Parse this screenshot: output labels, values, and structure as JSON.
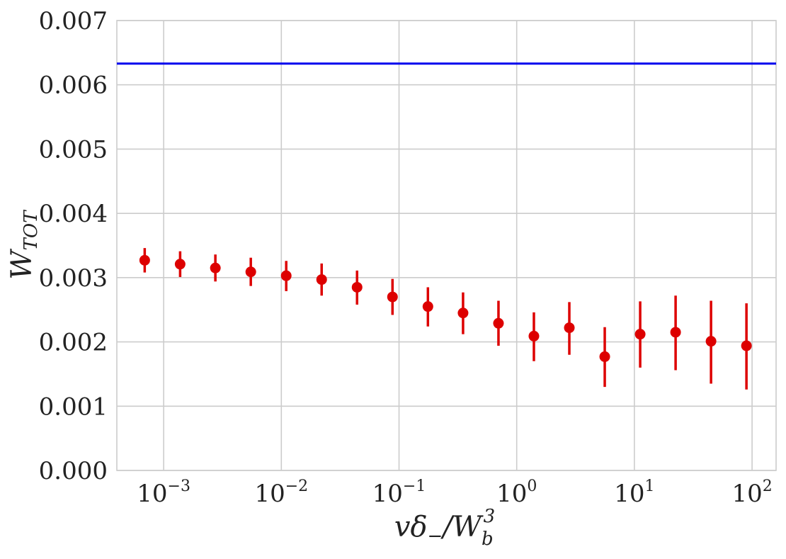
{
  "chart_data": {
    "type": "scatter",
    "title": "",
    "xlabel": {
      "main": "vδ",
      "sub": "−",
      "slash": "/W",
      "sub2": "b",
      "sup2": "3"
    },
    "ylabel": {
      "main": "W",
      "sub": "TOT"
    },
    "xscale": "log",
    "xlim": [
      0.0004,
      160
    ],
    "ylim": [
      0,
      0.007
    ],
    "grid": true,
    "x_ticks": [
      {
        "value": 0.001,
        "base": "10",
        "exp": "−3"
      },
      {
        "value": 0.01,
        "base": "10",
        "exp": "−2"
      },
      {
        "value": 0.1,
        "base": "10",
        "exp": "−1"
      },
      {
        "value": 1,
        "base": "10",
        "exp": "0"
      },
      {
        "value": 10,
        "base": "10",
        "exp": "1"
      },
      {
        "value": 100,
        "base": "10",
        "exp": "2"
      }
    ],
    "y_ticks": [
      {
        "value": 0.0,
        "label": "0.000"
      },
      {
        "value": 0.001,
        "label": "0.001"
      },
      {
        "value": 0.002,
        "label": "0.002"
      },
      {
        "value": 0.003,
        "label": "0.003"
      },
      {
        "value": 0.004,
        "label": "0.004"
      },
      {
        "value": 0.005,
        "label": "0.005"
      },
      {
        "value": 0.006,
        "label": "0.006"
      },
      {
        "value": 0.007,
        "label": "0.007"
      }
    ],
    "reference_line": {
      "y": 0.00633,
      "color": "#0000ee"
    },
    "series": [
      {
        "color": "#dd0000",
        "points": [
          {
            "x": 0.00069,
            "y": 0.00327,
            "lo": 0.00308,
            "hi": 0.00346
          },
          {
            "x": 0.00138,
            "y": 0.00321,
            "lo": 0.00301,
            "hi": 0.00341
          },
          {
            "x": 0.00275,
            "y": 0.00315,
            "lo": 0.00294,
            "hi": 0.00336
          },
          {
            "x": 0.0055,
            "y": 0.00309,
            "lo": 0.00287,
            "hi": 0.00331
          },
          {
            "x": 0.011,
            "y": 0.00303,
            "lo": 0.00279,
            "hi": 0.00326
          },
          {
            "x": 0.022,
            "y": 0.00297,
            "lo": 0.00272,
            "hi": 0.00322
          },
          {
            "x": 0.044,
            "y": 0.00285,
            "lo": 0.00258,
            "hi": 0.00311
          },
          {
            "x": 0.088,
            "y": 0.0027,
            "lo": 0.00242,
            "hi": 0.00298
          },
          {
            "x": 0.176,
            "y": 0.00255,
            "lo": 0.00224,
            "hi": 0.00285
          },
          {
            "x": 0.35,
            "y": 0.00245,
            "lo": 0.00212,
            "hi": 0.00277
          },
          {
            "x": 0.7,
            "y": 0.00229,
            "lo": 0.00194,
            "hi": 0.00264
          },
          {
            "x": 1.4,
            "y": 0.00209,
            "lo": 0.0017,
            "hi": 0.00246
          },
          {
            "x": 2.8,
            "y": 0.00222,
            "lo": 0.0018,
            "hi": 0.00262
          },
          {
            "x": 5.6,
            "y": 0.00177,
            "lo": 0.0013,
            "hi": 0.00223
          },
          {
            "x": 11.2,
            "y": 0.00212,
            "lo": 0.0016,
            "hi": 0.00263
          },
          {
            "x": 22.4,
            "y": 0.00215,
            "lo": 0.00156,
            "hi": 0.00272
          },
          {
            "x": 44.8,
            "y": 0.00201,
            "lo": 0.00135,
            "hi": 0.00264
          },
          {
            "x": 89.6,
            "y": 0.00194,
            "lo": 0.00126,
            "hi": 0.0026
          }
        ]
      }
    ]
  }
}
